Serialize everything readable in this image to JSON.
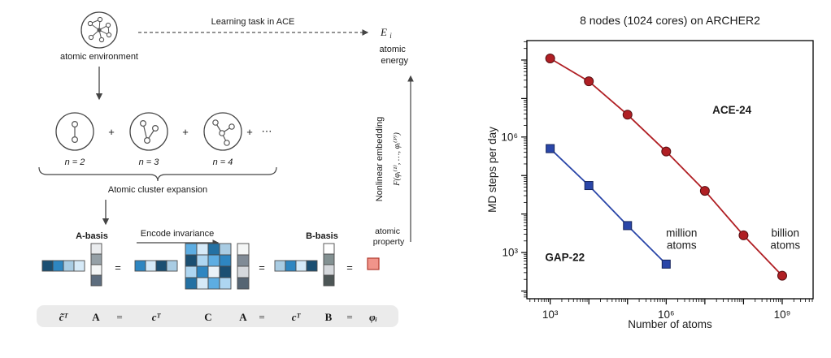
{
  "left_diagram": {
    "atomic_environment": "atomic environment",
    "learning_task": "Learning task in ACE",
    "energy_symbol": "E",
    "energy_sub": "i",
    "atomic_energy": [
      "atomic",
      "energy"
    ],
    "plus": "+",
    "dots": "⋯",
    "n_labels": [
      "n = 2",
      "n = 3",
      "n = 4"
    ],
    "brace_label": "Atomic cluster expansion",
    "a_basis": "A-basis",
    "encode_invariance": "Encode invariance",
    "b_basis": "B-basis",
    "atomic_property": [
      "atomic",
      "property"
    ],
    "nonlinear_embedding": "Nonlinear embedding",
    "embedding_formula": "F(φᵢ⁽¹⁾, …, φᵢ⁽ᴾ⁾)",
    "equation": [
      "c̃ᵀ",
      "A",
      "=",
      "cᵀ",
      "C",
      "A",
      "=",
      "cᵀ",
      "B",
      "=",
      "φᵢ"
    ],
    "blocks": {
      "row_c_tilde": [
        "#1b4f72",
        "#2e86c1",
        "#a9cce3",
        "#d6eaf8"
      ],
      "col_a1": [
        "#eaecee",
        "#95a0a6",
        "#f4f6f6",
        "#5d6d7e"
      ],
      "row_c1": [
        "#2e86c1",
        "#d6eaf8",
        "#1b4f72",
        "#a9cce3"
      ],
      "matrix_c": [
        [
          "#5dade2",
          "#d6eaf8",
          "#2471a3",
          "#a9cce3"
        ],
        [
          "#1b4f72",
          "#aed6f1",
          "#5dade2",
          "#2e86c1"
        ],
        [
          "#aed6f1",
          "#2e86c1",
          "#eaf2f8",
          "#1b4f72"
        ],
        [
          "#2471a3",
          "#d6eaf8",
          "#5dade2",
          "#aed6f1"
        ]
      ],
      "col_a2": [
        "#f4f6f6",
        "#808b96",
        "#d5d8dc",
        "#566573"
      ],
      "row_c2": [
        "#a9cce3",
        "#2e86c1",
        "#d6eaf8",
        "#1b4f72"
      ],
      "col_b": [
        "#ffffff",
        "#839192",
        "#d5d8dc",
        "#4d5656"
      ],
      "property_square": "#f1948a",
      "property_border": "#b03a2e"
    }
  },
  "chart_data": {
    "type": "line",
    "title": "8 nodes (1024 cores) on ARCHER2",
    "xlabel": "Number of atoms",
    "ylabel": "MD steps per day",
    "xscale": "log",
    "yscale": "log",
    "grid": false,
    "legend_position": "none",
    "xlim": [
      250.0,
      6300000000.0
    ],
    "ylim": [
      63.0,
      320000000.0
    ],
    "x_ticks": [
      {
        "value": 1000.0,
        "label": "10³"
      },
      {
        "value": 1000000.0,
        "label": "10⁶"
      },
      {
        "value": 1000000000.0,
        "label": "10⁹"
      }
    ],
    "y_ticks": [
      {
        "value": 1000.0,
        "label": "10³"
      },
      {
        "value": 1000000.0,
        "label": "10⁶"
      }
    ],
    "series": [
      {
        "name": "ACE-24",
        "color": "#b01f24",
        "marker": "circle",
        "marker_edge": "#571013",
        "x": [
          1000.0,
          10000.0,
          100000.0,
          1000000.0,
          10000000.0,
          100000000.0,
          1000000000.0
        ],
        "y": [
          110000000.0,
          28000000.0,
          3800000.0,
          420000.0,
          40000.0,
          2800.0,
          250.0
        ]
      },
      {
        "name": "GAP-22",
        "color": "#2a46a8",
        "marker": "square",
        "marker_edge": "#16255c",
        "x": [
          1000.0,
          10000.0,
          100000.0,
          1000000.0
        ],
        "y": [
          500000.0,
          55000.0,
          5000.0,
          500.0
        ]
      }
    ],
    "annotations": [
      {
        "lines": [
          "ACE-24"
        ],
        "x": 50000000.0,
        "y": 4000000.0,
        "color": "#b01f24",
        "bold": true
      },
      {
        "lines": [
          "GAP-22"
        ],
        "x": 2400.0,
        "y": 600.0,
        "color": "#2a46a8",
        "bold": true
      },
      {
        "lines": [
          "million",
          "atoms"
        ],
        "x": 2500000.0,
        "y": 2600.0,
        "color": "#203050",
        "bold": false
      },
      {
        "lines": [
          "billion",
          "atoms"
        ],
        "x": 1200000000.0,
        "y": 2600.0,
        "color": "#203050",
        "bold": false
      }
    ]
  }
}
